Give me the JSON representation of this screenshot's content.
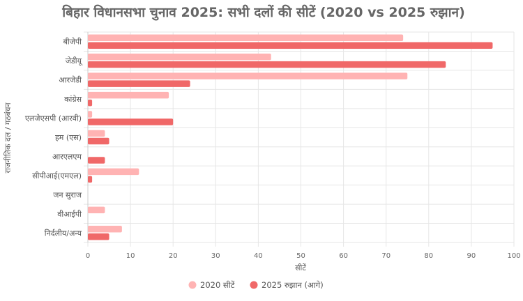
{
  "chart_data": {
    "type": "bar",
    "orientation": "horizontal",
    "title": "बिहार विधानसभा चुनाव 2025: सभी दलों की सीटें (2020 vs 2025 रुझान)",
    "xlabel": "सीटें",
    "ylabel": "राजनीतिक दल / गठबंधन",
    "xlim": [
      0,
      100
    ],
    "xticks": [
      0,
      10,
      20,
      30,
      40,
      50,
      60,
      70,
      80,
      90,
      100
    ],
    "grid": true,
    "legend_position": "bottom",
    "categories": [
      "बीजेपी",
      "जेडीयू",
      "आरजेडी",
      "कांग्रेस",
      "एलजेएसपी (आरवी)",
      "हम (एस)",
      "आरएलएम",
      "सीपीआई(एमएल)",
      "जन सुराज",
      "वीआईपी",
      "निर्दलीय/अन्य"
    ],
    "series": [
      {
        "name": "2020 सीटें",
        "color": "#ffb3b3",
        "values": [
          74,
          43,
          75,
          19,
          1,
          4,
          0,
          12,
          0,
          4,
          8
        ]
      },
      {
        "name": "2025 रुझान (आगे)",
        "color": "#f06868",
        "values": [
          95,
          84,
          24,
          1,
          20,
          5,
          4,
          1,
          0,
          0,
          5
        ]
      }
    ]
  }
}
